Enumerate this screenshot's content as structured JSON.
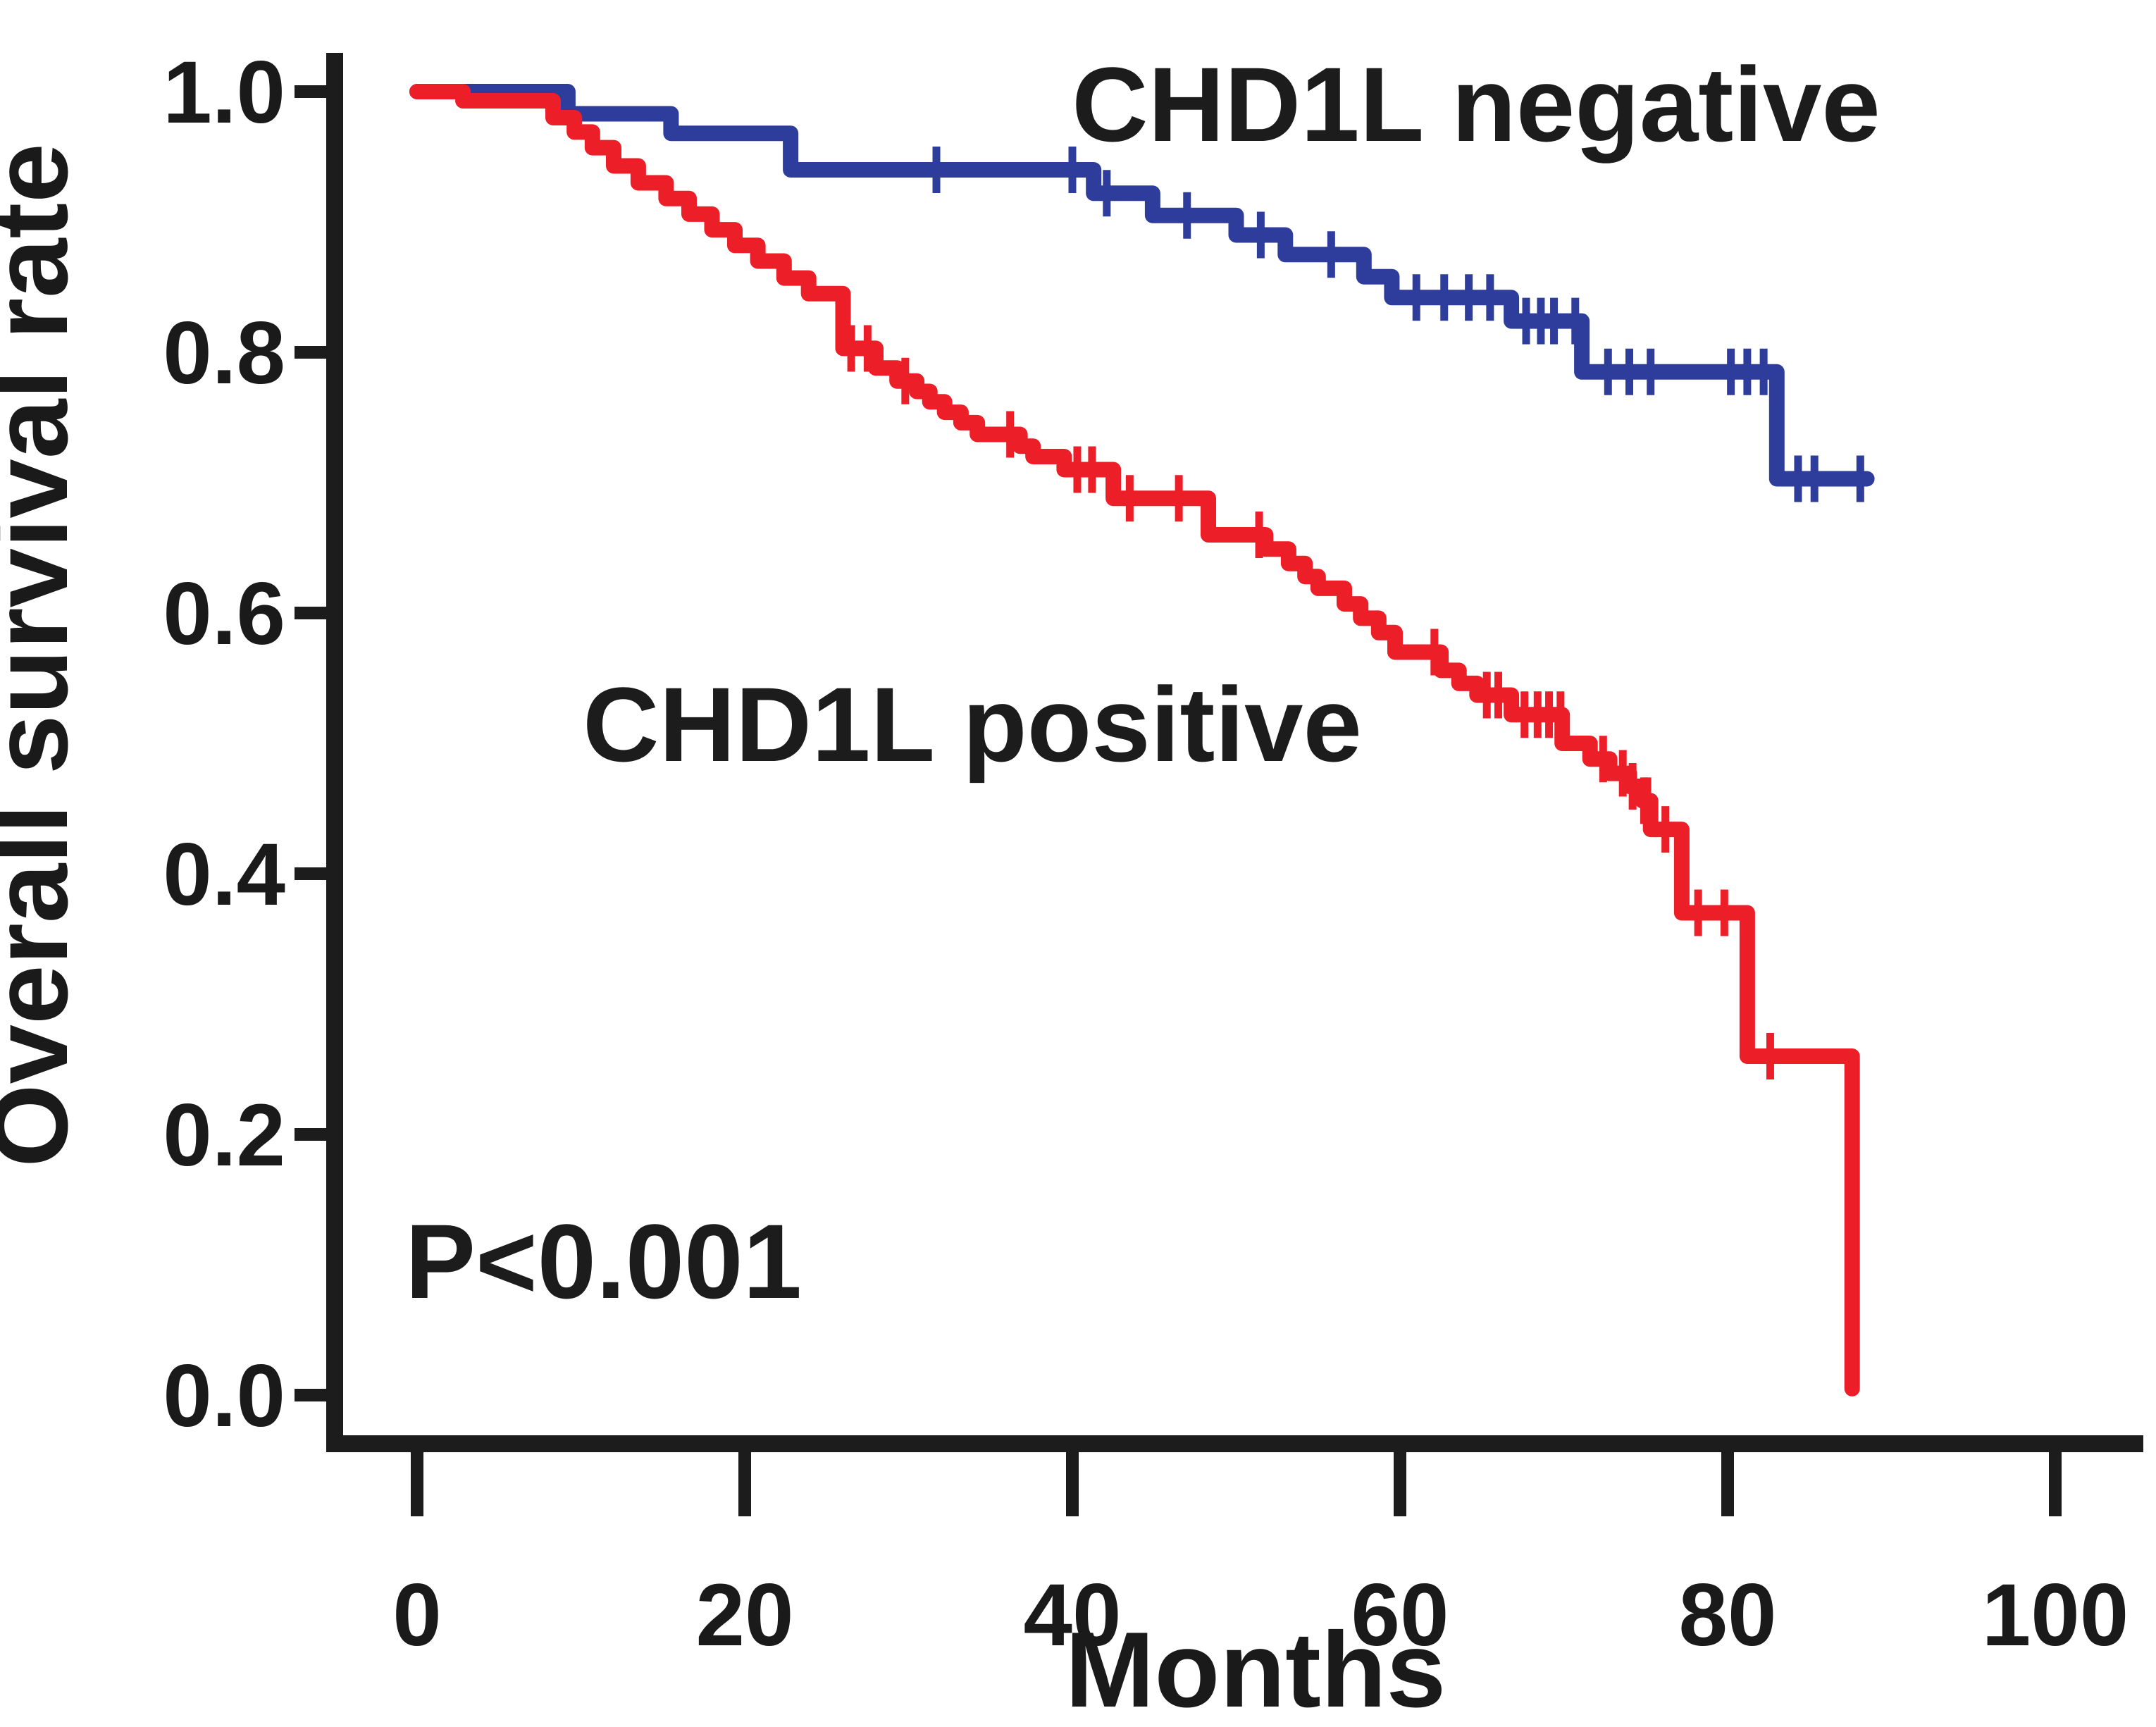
{
  "figure": {
    "labels": {
      "negative": "CHD1L negative",
      "positive": "CHD1L positive",
      "p_value": "P<0.001",
      "xlabel": "Months",
      "ylabel": "Overall survival rate"
    }
  },
  "chart_data": {
    "type": "line",
    "subtype": "kaplan-meier-step-curves",
    "title": "",
    "xlabel": "Months",
    "ylabel": "Overall survival rate",
    "xlim": [
      0,
      105
    ],
    "ylim": [
      0.0,
      1.02
    ],
    "grid": false,
    "legend_position": "none",
    "x_ticks": [
      0,
      20,
      40,
      60,
      80,
      100
    ],
    "y_ticks": [
      {
        "value": 1.0,
        "label": "1.0"
      },
      {
        "value": 0.8,
        "label": "0.8"
      },
      {
        "value": 0.6,
        "label": "0.6"
      },
      {
        "value": 0.4,
        "label": "0.4"
      },
      {
        "value": 0.2,
        "label": "0.2"
      },
      {
        "value": 0.0,
        "label": "0.0"
      }
    ],
    "annotations": [
      {
        "text": "CHD1L negative",
        "x_month": 64.5,
        "y_rate": 0.975
      },
      {
        "text": "CHD1L positive",
        "x_month": 34.0,
        "y_rate": 0.5
      },
      {
        "text": "P<0.001",
        "x_month": 0.5,
        "y_rate": 0.09
      }
    ],
    "series": [
      {
        "name": "CHD1L negative",
        "color": "#2E3D9C",
        "steps": [
          [
            0,
            1.0
          ],
          [
            9.2,
            0.983
          ],
          [
            15.5,
            0.968
          ],
          [
            22.8,
            0.94
          ],
          [
            41.3,
            0.922
          ],
          [
            44.9,
            0.905
          ],
          [
            50.0,
            0.89
          ],
          [
            53.0,
            0.875
          ],
          [
            57.8,
            0.858
          ],
          [
            59.5,
            0.842
          ],
          [
            66.8,
            0.824
          ],
          [
            71.1,
            0.785
          ],
          [
            83.0,
            0.703
          ],
          [
            88.5,
            0.703
          ]
        ],
        "censors": [
          [
            31.7,
            0.94
          ],
          [
            40.0,
            0.94
          ],
          [
            42.1,
            0.922
          ],
          [
            47.0,
            0.905
          ],
          [
            51.5,
            0.89
          ],
          [
            55.8,
            0.875
          ],
          [
            61.0,
            0.842
          ],
          [
            62.7,
            0.842
          ],
          [
            64.2,
            0.842
          ],
          [
            65.5,
            0.842
          ],
          [
            67.7,
            0.824
          ],
          [
            68.6,
            0.824
          ],
          [
            69.4,
            0.824
          ],
          [
            70.7,
            0.824
          ],
          [
            72.7,
            0.785
          ],
          [
            74.0,
            0.785
          ],
          [
            75.3,
            0.785
          ],
          [
            80.2,
            0.785
          ],
          [
            81.2,
            0.785
          ],
          [
            82.2,
            0.785
          ],
          [
            84.3,
            0.703
          ],
          [
            85.3,
            0.703
          ],
          [
            88.1,
            0.703
          ]
        ]
      },
      {
        "name": "CHD1L positive",
        "color": "#EC1E28",
        "steps": [
          [
            0,
            1.0
          ],
          [
            2.8,
            0.993
          ],
          [
            8.3,
            0.98
          ],
          [
            9.6,
            0.969
          ],
          [
            10.7,
            0.957
          ],
          [
            12.0,
            0.943
          ],
          [
            13.5,
            0.93
          ],
          [
            15.2,
            0.918
          ],
          [
            16.6,
            0.906
          ],
          [
            18.0,
            0.894
          ],
          [
            19.4,
            0.882
          ],
          [
            20.8,
            0.87
          ],
          [
            22.4,
            0.857
          ],
          [
            23.9,
            0.845
          ],
          [
            26.0,
            0.803
          ],
          [
            28.0,
            0.788
          ],
          [
            29.3,
            0.778
          ],
          [
            30.5,
            0.77
          ],
          [
            31.3,
            0.762
          ],
          [
            32.2,
            0.754
          ],
          [
            33.2,
            0.746
          ],
          [
            34.2,
            0.737
          ],
          [
            36.8,
            0.728
          ],
          [
            37.6,
            0.72
          ],
          [
            39.5,
            0.71
          ],
          [
            42.5,
            0.688
          ],
          [
            48.3,
            0.66
          ],
          [
            51.8,
            0.649
          ],
          [
            53.2,
            0.638
          ],
          [
            54.2,
            0.628
          ],
          [
            55.0,
            0.619
          ],
          [
            56.6,
            0.607
          ],
          [
            57.6,
            0.596
          ],
          [
            58.7,
            0.585
          ],
          [
            59.7,
            0.57
          ],
          [
            62.5,
            0.556
          ],
          [
            63.6,
            0.546
          ],
          [
            64.7,
            0.537
          ],
          [
            66.8,
            0.522
          ],
          [
            69.9,
            0.5
          ],
          [
            71.6,
            0.488
          ],
          [
            72.8,
            0.477
          ],
          [
            74.0,
            0.467
          ],
          [
            74.8,
            0.456
          ],
          [
            75.3,
            0.434
          ],
          [
            77.2,
            0.37
          ],
          [
            81.2,
            0.26
          ],
          [
            87.6,
            0.005
          ]
        ],
        "censors": [
          [
            26.5,
            0.803
          ],
          [
            27.5,
            0.803
          ],
          [
            29.8,
            0.778
          ],
          [
            36.2,
            0.737
          ],
          [
            40.3,
            0.71
          ],
          [
            41.2,
            0.71
          ],
          [
            43.5,
            0.688
          ],
          [
            46.5,
            0.688
          ],
          [
            51.4,
            0.66
          ],
          [
            62.1,
            0.57
          ],
          [
            65.3,
            0.537
          ],
          [
            66.0,
            0.537
          ],
          [
            67.6,
            0.522
          ],
          [
            68.4,
            0.522
          ],
          [
            69.1,
            0.522
          ],
          [
            69.8,
            0.522
          ],
          [
            72.4,
            0.488
          ],
          [
            73.6,
            0.477
          ],
          [
            74.2,
            0.467
          ],
          [
            74.9,
            0.456
          ],
          [
            75.1,
            0.456
          ],
          [
            76.2,
            0.434
          ],
          [
            78.2,
            0.37
          ],
          [
            79.8,
            0.37
          ],
          [
            82.6,
            0.26
          ]
        ]
      }
    ]
  }
}
